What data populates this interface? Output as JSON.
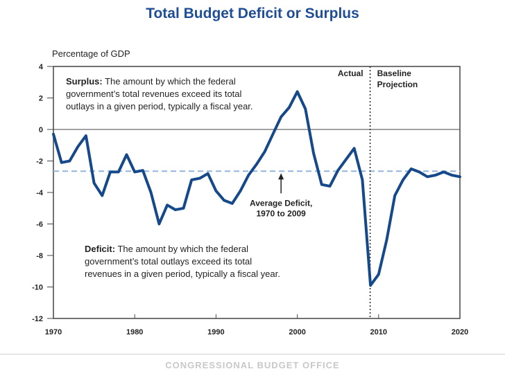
{
  "title": "Total Budget Deficit or Surplus",
  "footer": "CONGRESSIONAL BUDGET OFFICE",
  "chart_data": {
    "type": "line",
    "title": "Total Budget Deficit or Surplus",
    "ylabel": "Percentage of GDP",
    "xlabel": "",
    "xlim": [
      1970,
      2020
    ],
    "ylim": [
      -12,
      4
    ],
    "x_ticks": [
      "1970",
      "1980",
      "1990",
      "2000",
      "2010",
      "2020"
    ],
    "y_ticks": [
      "4",
      "2",
      "0",
      "-2",
      "-4",
      "-6",
      "-8",
      "-10",
      "-12"
    ],
    "grid": false,
    "zero_line": 0,
    "average_line": {
      "value": -2.65,
      "label_line1": "Average Deficit,",
      "label_line2": "1970 to 2009",
      "color": "#8fb4e0"
    },
    "divider": {
      "x": 2009,
      "left_label": "Actual",
      "right_label_line1": "Baseline",
      "right_label_line2": "Projection"
    },
    "series": [
      {
        "color": "#16498a",
        "x": [
          1970,
          1971,
          1972,
          1973,
          1974,
          1975,
          1976,
          1977,
          1978,
          1979,
          1980,
          1981,
          1982,
          1983,
          1984,
          1985,
          1986,
          1987,
          1988,
          1989,
          1990,
          1991,
          1992,
          1993,
          1994,
          1995,
          1996,
          1997,
          1998,
          1999,
          2000,
          2001,
          2002,
          2003,
          2004,
          2005,
          2006,
          2007,
          2008,
          2009,
          2010,
          2011,
          2012,
          2013,
          2014,
          2015,
          2016,
          2017,
          2018,
          2019,
          2020
        ],
        "y": [
          -0.3,
          -2.1,
          -2.0,
          -1.1,
          -0.4,
          -3.4,
          -4.2,
          -2.7,
          -2.7,
          -1.6,
          -2.7,
          -2.6,
          -4.0,
          -6.0,
          -4.8,
          -5.1,
          -5.0,
          -3.2,
          -3.1,
          -2.8,
          -3.9,
          -4.5,
          -4.7,
          -3.9,
          -2.9,
          -2.2,
          -1.4,
          -0.3,
          0.8,
          1.4,
          2.4,
          1.3,
          -1.5,
          -3.5,
          -3.6,
          -2.6,
          -1.9,
          -1.2,
          -3.2,
          -9.9,
          -9.2,
          -7.0,
          -4.2,
          -3.2,
          -2.5,
          -2.7,
          -3.0,
          -2.9,
          -2.7,
          -2.9,
          -3.0
        ]
      }
    ]
  },
  "annotations": {
    "surplus": {
      "term": "Surplus:",
      "line1": " The amount by which the federal",
      "line2": "government’s total revenues exceed its total",
      "line3": "outlays in a given period, typically a fiscal year."
    },
    "deficit": {
      "term": "Deficit:",
      "line1": " The amount by which the federal",
      "line2": "government’s total outlays exceed its total",
      "line3": "revenues in a given period, typically a fiscal year."
    }
  }
}
